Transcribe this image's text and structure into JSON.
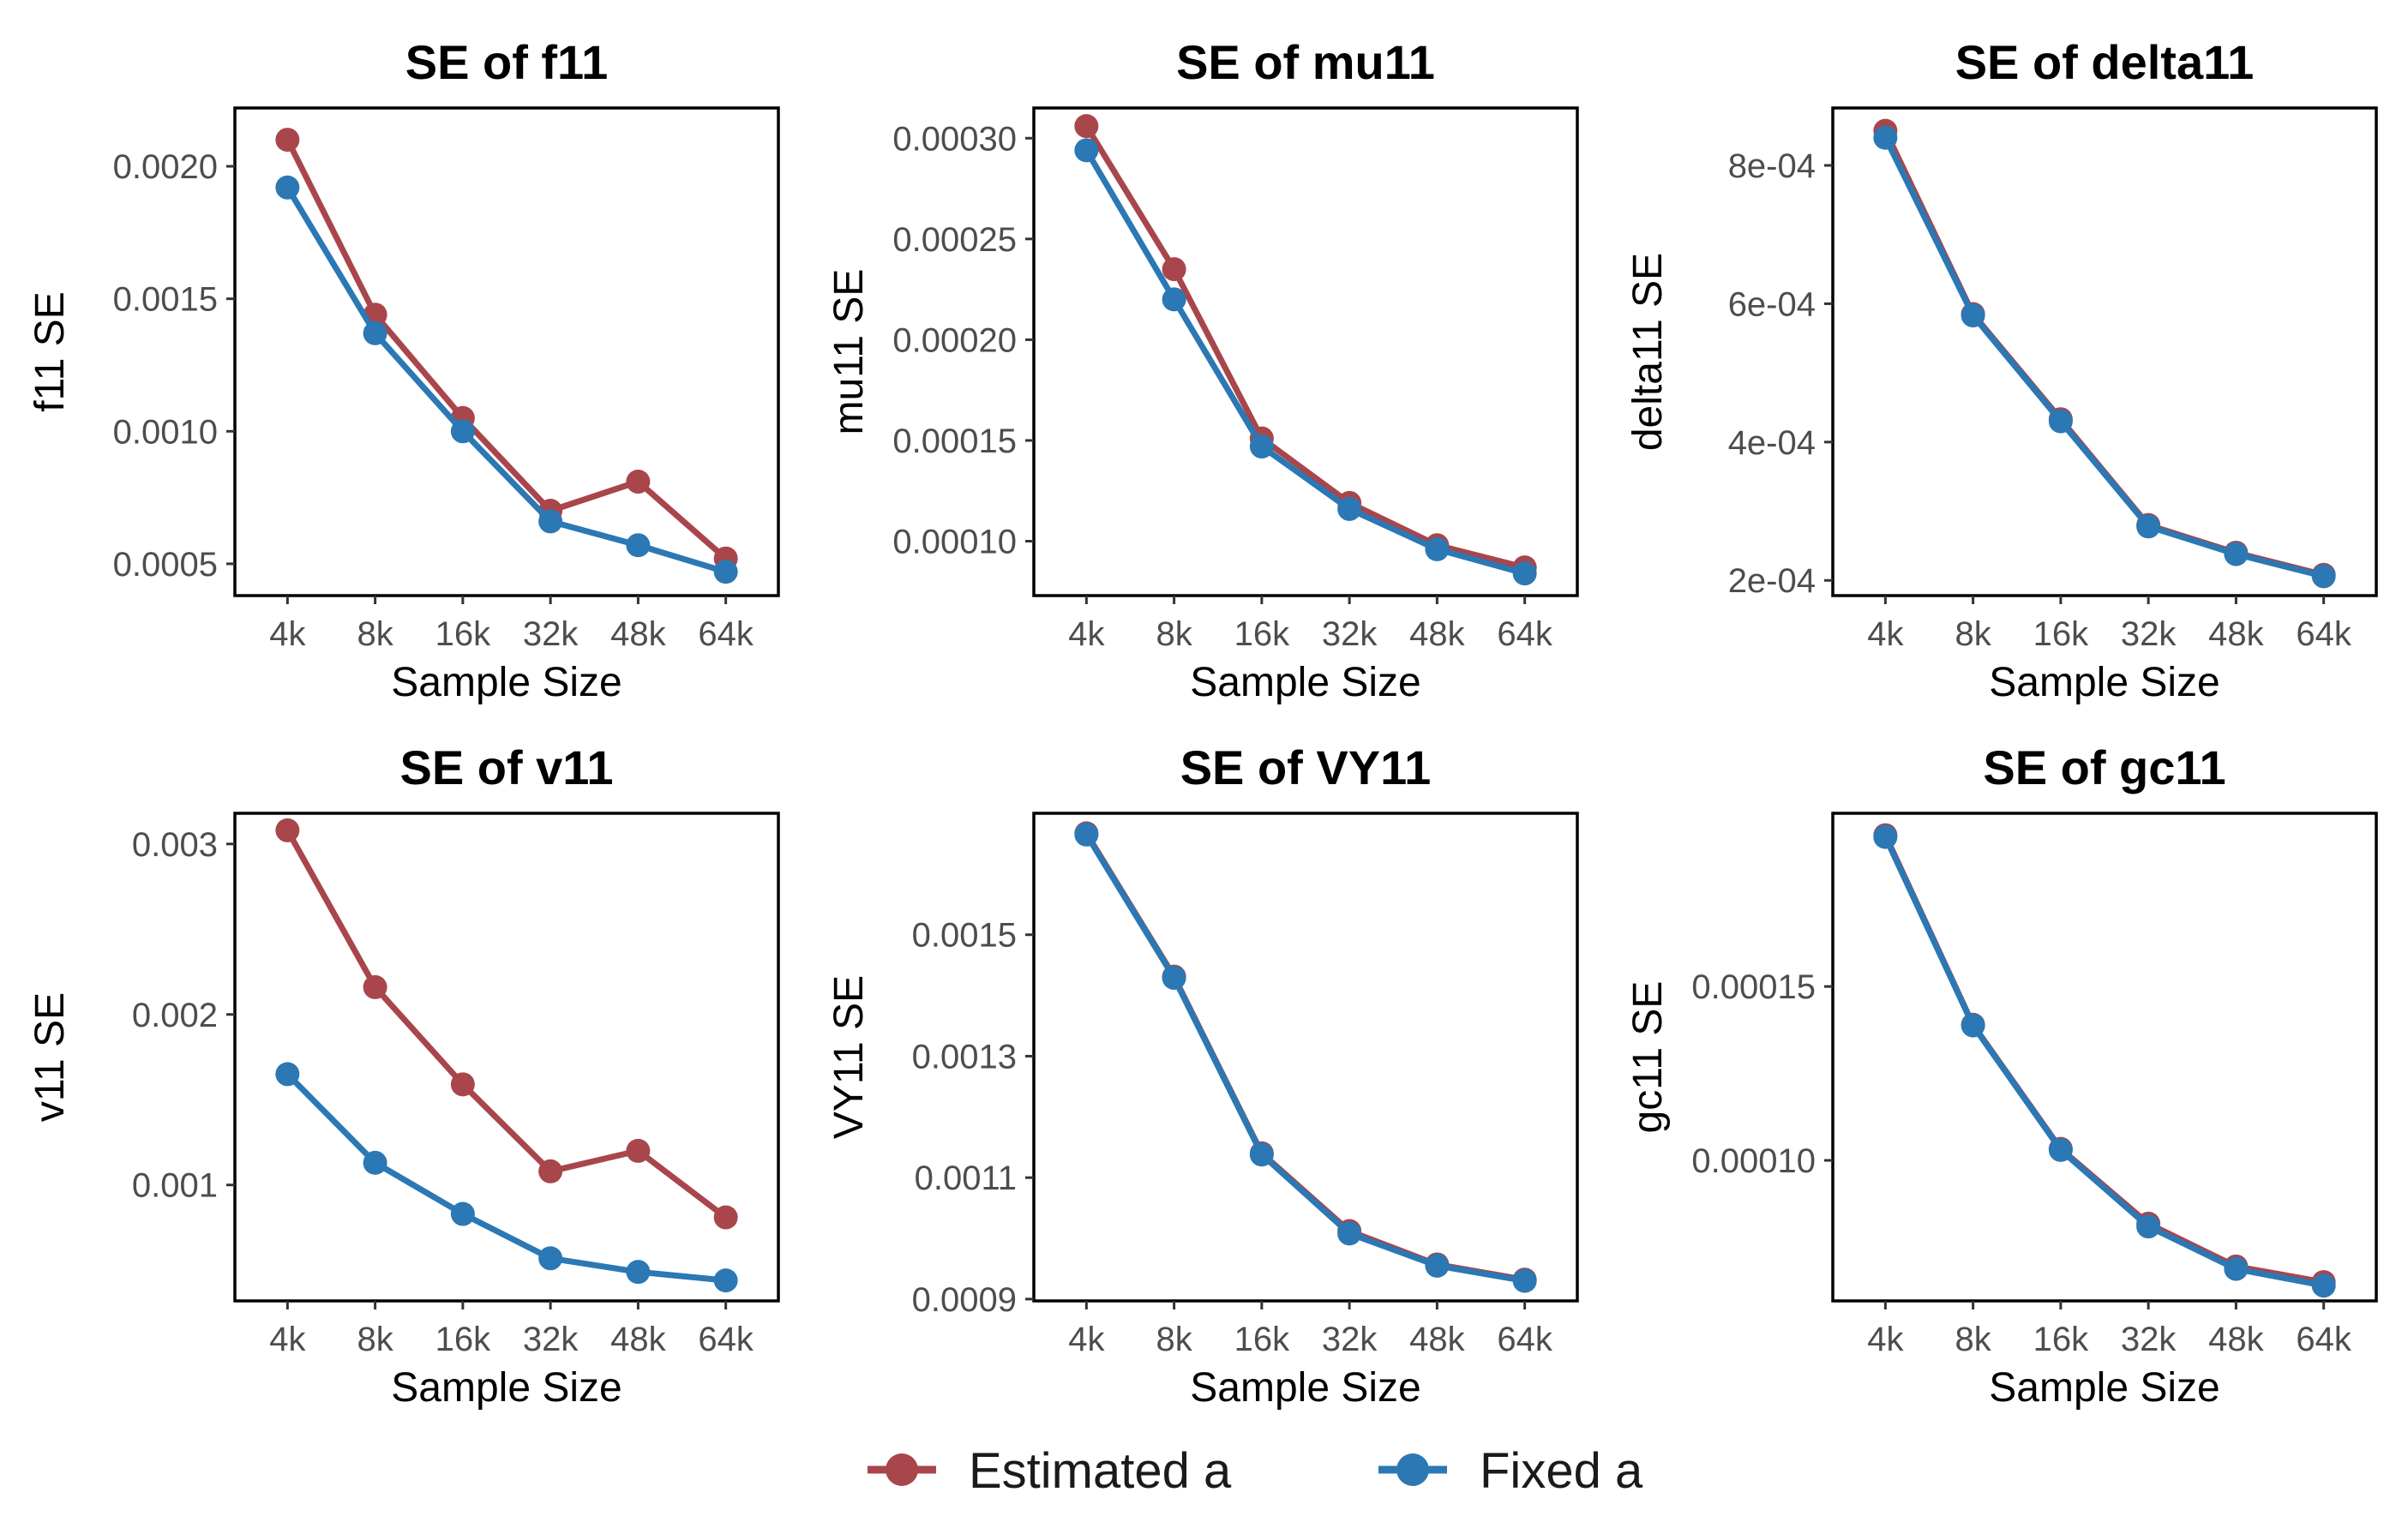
{
  "colors": {
    "estimated": "#A8464C",
    "fixed": "#2B78B4"
  },
  "legend": {
    "items": [
      {
        "label": "Estimated a",
        "color": "#A8464C"
      },
      {
        "label": "Fixed a",
        "color": "#2B78B4"
      }
    ],
    "position": "bottom"
  },
  "chart_data": [
    {
      "type": "line",
      "title": "SE of f11",
      "xlabel": "Sample Size",
      "ylabel": "f11 SE",
      "categories": [
        "4k",
        "8k",
        "16k",
        "32k",
        "48k",
        "64k"
      ],
      "ylim": [
        0.00038,
        0.00222
      ],
      "yticks": [
        0.0005,
        0.001,
        0.0015,
        0.002
      ],
      "ytick_labels": [
        "0.0005",
        "0.0010",
        "0.0015",
        "0.0020"
      ],
      "series": [
        {
          "name": "Estimated a",
          "values": [
            0.0021,
            0.00144,
            0.00105,
            0.0007,
            0.00081,
            0.00052
          ]
        },
        {
          "name": "Fixed a",
          "values": [
            0.00192,
            0.00137,
            0.001,
            0.00066,
            0.00057,
            0.00047
          ]
        }
      ]
    },
    {
      "type": "line",
      "title": "SE of mu11",
      "xlabel": "Sample Size",
      "ylabel": "mu11 SE",
      "categories": [
        "4k",
        "8k",
        "16k",
        "32k",
        "48k",
        "64k"
      ],
      "ylim": [
        7.3e-05,
        0.000315
      ],
      "yticks": [
        0.0001,
        0.00015,
        0.0002,
        0.00025,
        0.0003
      ],
      "ytick_labels": [
        "0.00010",
        "0.00015",
        "0.00020",
        "0.00025",
        "0.00030"
      ],
      "series": [
        {
          "name": "Estimated a",
          "values": [
            0.000306,
            0.000235,
            0.000151,
            0.000119,
            9.8e-05,
            8.7e-05
          ]
        },
        {
          "name": "Fixed a",
          "values": [
            0.000294,
            0.00022,
            0.000147,
            0.000116,
            9.6e-05,
            8.4e-05
          ]
        }
      ]
    },
    {
      "type": "line",
      "title": "SE of delta11",
      "xlabel": "Sample Size",
      "ylabel": "delta11 SE",
      "categories": [
        "4k",
        "8k",
        "16k",
        "32k",
        "48k",
        "64k"
      ],
      "ylim": [
        0.000178,
        0.000883
      ],
      "yticks": [
        0.0002,
        0.0004,
        0.0006,
        0.0008
      ],
      "ytick_labels": [
        "2e-04",
        "4e-04",
        "6e-04",
        "8e-04"
      ],
      "series": [
        {
          "name": "Estimated a",
          "values": [
            0.00085,
            0.000585,
            0.000433,
            0.00028,
            0.00024,
            0.000208
          ]
        },
        {
          "name": "Fixed a",
          "values": [
            0.00084,
            0.000583,
            0.00043,
            0.000278,
            0.000238,
            0.000206
          ]
        }
      ]
    },
    {
      "type": "line",
      "title": "SE of v11",
      "xlabel": "Sample Size",
      "ylabel": "v11 SE",
      "categories": [
        "4k",
        "8k",
        "16k",
        "32k",
        "48k",
        "64k"
      ],
      "ylim": [
        0.00032,
        0.00318
      ],
      "yticks": [
        0.001,
        0.002,
        0.003
      ],
      "ytick_labels": [
        "0.001",
        "0.002",
        "0.003"
      ],
      "series": [
        {
          "name": "Estimated a",
          "values": [
            0.00308,
            0.00216,
            0.00159,
            0.00108,
            0.0012,
            0.00081
          ]
        },
        {
          "name": "Fixed a",
          "values": [
            0.00165,
            0.00113,
            0.00083,
            0.00057,
            0.00049,
            0.00044
          ]
        }
      ]
    },
    {
      "type": "line",
      "title": "SE of VY11",
      "xlabel": "Sample Size",
      "ylabel": "VY11 SE",
      "categories": [
        "4k",
        "8k",
        "16k",
        "32k",
        "48k",
        "64k"
      ],
      "ylim": [
        0.000897,
        0.0017
      ],
      "yticks": [
        0.0009,
        0.0011,
        0.0013,
        0.0015
      ],
      "ytick_labels": [
        "0.0009",
        "0.0011",
        "0.0013",
        "0.0015"
      ],
      "series": [
        {
          "name": "Estimated a",
          "values": [
            0.001667,
            0.001431,
            0.00114,
            0.001012,
            0.000957,
            0.000932
          ]
        },
        {
          "name": "Fixed a",
          "values": [
            0.001665,
            0.001429,
            0.001138,
            0.001008,
            0.000955,
            0.00093
          ]
        }
      ]
    },
    {
      "type": "line",
      "title": "SE of gc11",
      "xlabel": "Sample Size",
      "ylabel": "gc11 SE",
      "categories": [
        "4k",
        "8k",
        "16k",
        "32k",
        "48k",
        "64k"
      ],
      "ylim": [
        5.96e-05,
        0.0001998
      ],
      "yticks": [
        0.0001,
        0.00015
      ],
      "ytick_labels": [
        "0.00010",
        "0.00015"
      ],
      "series": [
        {
          "name": "Estimated a",
          "values": [
            0.0001935,
            0.000139,
            0.0001033,
            8.18e-05,
            6.95e-05,
            6.5e-05
          ]
        },
        {
          "name": "Fixed a",
          "values": [
            0.000193,
            0.0001388,
            0.000103,
            8.1e-05,
            6.88e-05,
            6.4e-05
          ]
        }
      ]
    }
  ]
}
